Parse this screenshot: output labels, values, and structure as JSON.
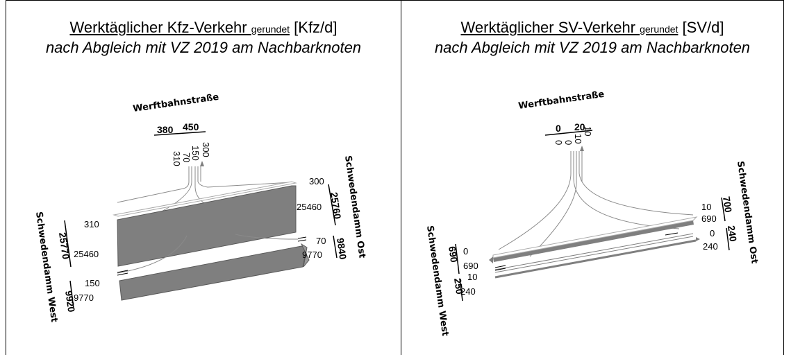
{
  "left": {
    "title_main": "Werktäglicher Kfz-Verkehr",
    "title_small": "gerundet",
    "title_unit": "[Kfz/d]",
    "subtitle": "nach Abgleich mit VZ 2019 am Nachbarknoten",
    "streets": {
      "north": "Werftbahnstraße",
      "east": "Schwedendamm Ost",
      "west": "Schwedendamm West"
    },
    "north_totals": [
      "380",
      "450"
    ],
    "north_turns": [
      "310",
      "70",
      "150",
      "300"
    ],
    "east_totals": [
      "25760",
      "9840"
    ],
    "east_values": [
      "300",
      "25460",
      "70",
      "9770"
    ],
    "west_totals": [
      "25770",
      "9920"
    ],
    "west_values": [
      "310",
      "25460",
      "150",
      "9770"
    ]
  },
  "right": {
    "title_main": "Werktäglicher SV-Verkehr",
    "title_small": "gerundet",
    "title_unit": "[SV/d]",
    "subtitle": "nach Abgleich mit VZ 2019 am Nachbarknoten",
    "streets": {
      "north": "Werftbahnstraße",
      "east": "Schwedendamm Ost",
      "west": "Schwedendamm West"
    },
    "north_totals": [
      "0",
      "20"
    ],
    "north_turns": [
      "0",
      "0",
      "10",
      "10"
    ],
    "east_totals": [
      "700",
      "240"
    ],
    "east_values": [
      "10",
      "690",
      "0",
      "240"
    ],
    "west_totals": [
      "690",
      "250"
    ],
    "west_values": [
      "0",
      "690",
      "10",
      "240"
    ]
  },
  "colors": {
    "flow_fill": "#7f7f7f",
    "flow_stroke": "#5a5a5a",
    "line": "#000000"
  }
}
